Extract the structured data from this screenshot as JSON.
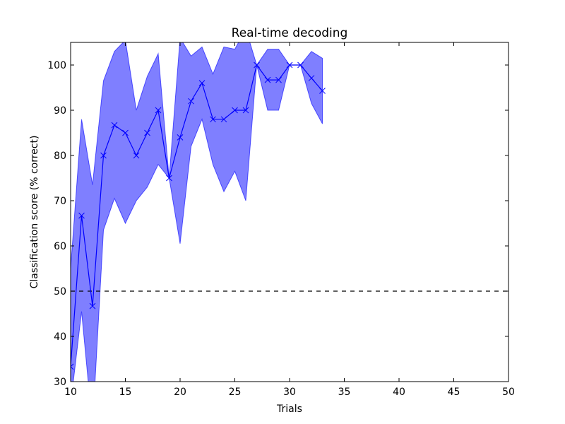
{
  "chart_data": {
    "type": "line",
    "title": "Real-time decoding",
    "xlabel": "Trials",
    "ylabel": "Classification score (% correct)",
    "xlim": [
      10,
      50
    ],
    "ylim": [
      30,
      105
    ],
    "xticks": [
      10,
      15,
      20,
      25,
      30,
      35,
      40,
      45,
      50
    ],
    "yticks": [
      30,
      40,
      50,
      60,
      70,
      80,
      90,
      100
    ],
    "grid": false,
    "legend": "none",
    "reference_line": {
      "y": 50,
      "style": "dashed",
      "color": "#000000"
    },
    "series": [
      {
        "x": [
          10,
          11,
          12,
          13,
          14,
          15,
          16,
          17,
          18,
          19,
          20,
          21,
          22,
          23,
          24,
          25,
          26,
          27,
          28,
          29,
          30,
          31,
          32,
          33
        ],
        "values": [
          33.3,
          66.7,
          46.7,
          80,
          86.7,
          85,
          80,
          85,
          90,
          75,
          84,
          92,
          96,
          88,
          88,
          90,
          90,
          100,
          96.7,
          96.7,
          100,
          100,
          97.1,
          94.3
        ],
        "upper": [
          55,
          88,
          73.5,
          96.5,
          103,
          105.5,
          90,
          97.5,
          102.5,
          75,
          106,
          102,
          104,
          98,
          104,
          103.5,
          108,
          100,
          103.5,
          103.5,
          100,
          100,
          103,
          101.5
        ],
        "lower": [
          25,
          45.5,
          20,
          63.5,
          70.5,
          65,
          70,
          73,
          78,
          75,
          60.5,
          82,
          88,
          78,
          72,
          76.5,
          70,
          100,
          90,
          90,
          100,
          100,
          91.5,
          87
        ],
        "color": "#0000ff",
        "fill_color": "#0000ff",
        "fill_opacity": 0.5,
        "marker": "x"
      }
    ]
  }
}
